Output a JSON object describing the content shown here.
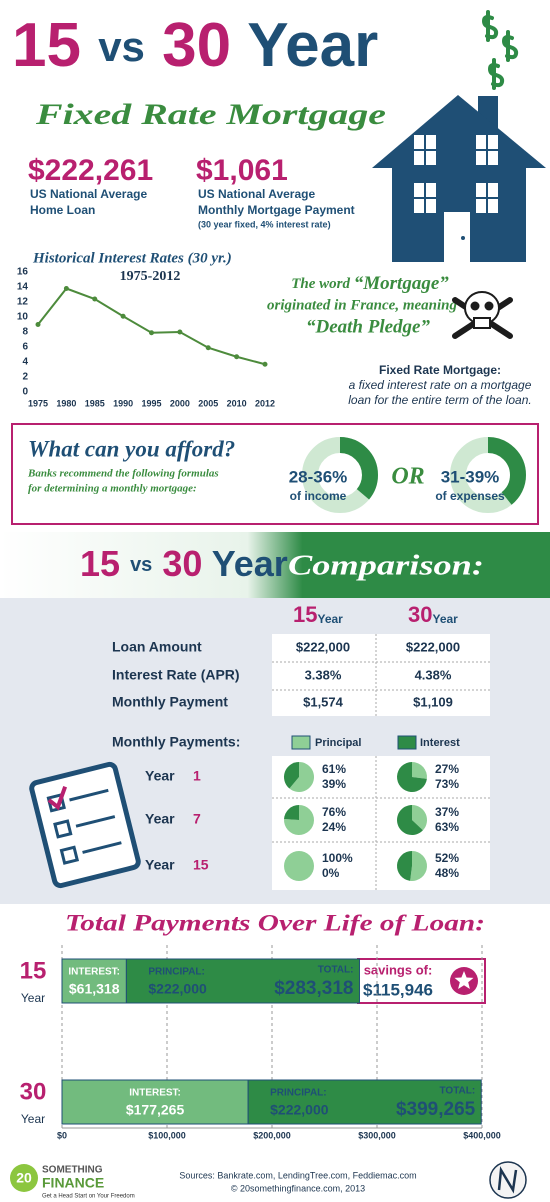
{
  "header": {
    "title_parts": [
      "15",
      "vs",
      "30",
      "Year"
    ],
    "subtitle": "Fixed Rate Mortgage"
  },
  "stats": [
    {
      "value": "$222,261",
      "lines": [
        "US National Average",
        "Home Loan"
      ]
    },
    {
      "value": "$1,061",
      "lines": [
        "US National Average",
        "Monthly Mortgage Payment",
        "(30 year fixed, 4% interest rate)"
      ]
    }
  ],
  "fact": {
    "intro": "The word",
    "word": "“Mortgage”",
    "middle": "originated in France, meaning",
    "meaning": "“Death Pledge”"
  },
  "definition": {
    "term": "Fixed Rate Mortgage:",
    "lines": [
      "a fixed interest rate on a mortgage",
      "loan for the entire term of the loan."
    ]
  },
  "afford": {
    "title": "What can you afford?",
    "lines": [
      "Banks recommend the following formulas",
      "for determining a monthly mortgage:"
    ],
    "options": [
      {
        "range": "28-36%",
        "basis": "of income"
      },
      {
        "range": "31-39%",
        "basis": "of expenses"
      }
    ],
    "separator": "OR"
  },
  "comparison": {
    "heading": [
      "15",
      "vs",
      "30",
      "Year"
    ],
    "tagline": "Comparison:",
    "columns": [
      {
        "term": "15",
        "unit": "Year"
      },
      {
        "term": "30",
        "unit": "Year"
      }
    ],
    "rows": [
      {
        "label": "Loan Amount",
        "cells": [
          "$222,000",
          "$222,000"
        ]
      },
      {
        "label": "Interest Rate (APR)",
        "cells": [
          "3.38%",
          "4.38%"
        ]
      },
      {
        "label": "Monthly Payment",
        "cells": [
          "$1,574",
          "$1,109"
        ]
      }
    ],
    "payments_label": "Monthly Payments:"
  },
  "savings": {
    "label": "savings of:",
    "amount": "$115,946"
  },
  "chart_data": [
    {
      "type": "line",
      "title": "Historical Interest Rates (30 yr.)",
      "subtitle": "1975-2012",
      "categories": [
        "1975",
        "1980",
        "1985",
        "1990",
        "1995",
        "2000",
        "2005",
        "2010",
        "2012"
      ],
      "values": [
        9,
        13.8,
        12.4,
        10.1,
        7.9,
        8,
        5.9,
        4.7,
        3.7
      ],
      "color": "#4d8b3c",
      "ylim": [
        0,
        16
      ],
      "yticks": [
        0,
        2,
        4,
        6,
        8,
        10,
        12,
        14,
        16
      ]
    },
    {
      "type": "pie",
      "legend": [
        "Principal",
        "Interest"
      ],
      "colors": [
        "#8fcf96",
        "#2e8b46"
      ],
      "groups": [
        {
          "label": "Year",
          "year": "1",
          "pies": [
            {
              "values": [
                61,
                39
              ],
              "value_labels": [
                "61%",
                "39%"
              ]
            },
            {
              "values": [
                27,
                73
              ],
              "value_labels": [
                "27%",
                "73%"
              ]
            }
          ]
        },
        {
          "label": "Year",
          "year": "7",
          "pies": [
            {
              "values": [
                76,
                24
              ],
              "value_labels": [
                "76%",
                "24%"
              ]
            },
            {
              "values": [
                37,
                63
              ],
              "value_labels": [
                "37%",
                "63%"
              ]
            }
          ]
        },
        {
          "label": "Year",
          "year": "15",
          "pies": [
            {
              "values": [
                100,
                0
              ],
              "value_labels": [
                "100%",
                "0%"
              ]
            },
            {
              "values": [
                52,
                48
              ],
              "value_labels": [
                "52%",
                "48%"
              ]
            }
          ]
        }
      ]
    },
    {
      "type": "bar",
      "title": "Total Payments Over Life of Loan:",
      "categories": [
        "15",
        "30"
      ],
      "category_unit": "Year",
      "series": [
        {
          "name": "INTEREST:",
          "color": "#72bb7e",
          "values": [
            61318,
            177265
          ],
          "value_labels": [
            "$61,318",
            "$177,265"
          ]
        },
        {
          "name": "PRINCIPAL:",
          "color": "#2e8b46",
          "values": [
            222000,
            222000
          ],
          "value_labels": [
            "$222,000",
            "$222,000"
          ]
        }
      ],
      "total_label": "TOTAL:",
      "totals": [
        283318,
        399265
      ],
      "total_value_labels": [
        "$283,318",
        "$399,265"
      ],
      "xlim": [
        0,
        400000
      ],
      "xticks": [
        {
          "value": 0,
          "label": "$0"
        },
        {
          "value": 100000,
          "label": "$100,000"
        },
        {
          "value": 200000,
          "label": "$200,000"
        },
        {
          "value": 300000,
          "label": "$300,000"
        },
        {
          "value": 400000,
          "label": "$400,000"
        }
      ],
      "grid": true
    }
  ],
  "footer": {
    "brand": [
      "20",
      "SOMETHING",
      "FINANCE"
    ],
    "tagline": "Get a Head Start on Your Freedom",
    "sources": "Sources: Bankrate.com, LendingTree.com, Feddiemac.com",
    "copyright": "© 20somethingfinance.com, 2013"
  }
}
